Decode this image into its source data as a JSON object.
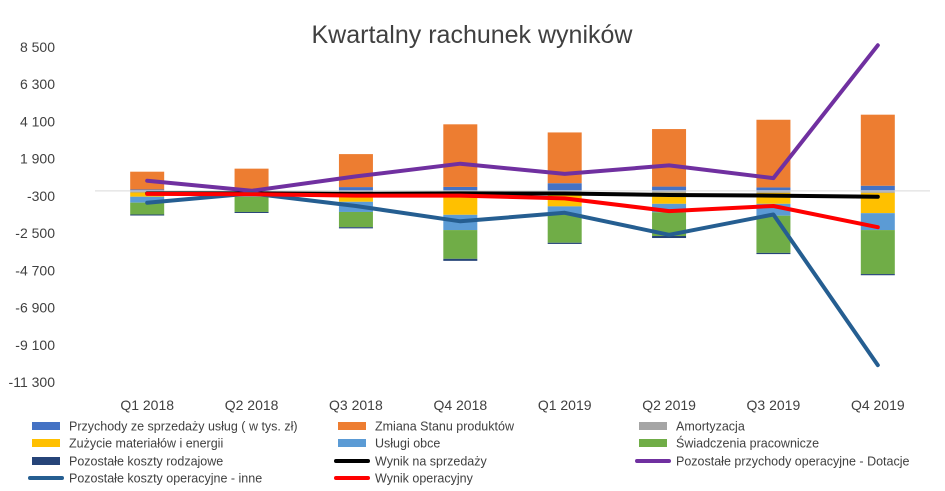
{
  "chart_data": {
    "type": "bar",
    "title": "Kwartalny rachunek wyników",
    "xlabel": "",
    "ylabel": "",
    "categories": [
      "Q1 2018",
      "Q2 2018",
      "Q3 2018",
      "Q4 2018",
      "Q1 2019",
      "Q2 2019",
      "Q3 2019",
      "Q4 2019"
    ],
    "y_ticks": [
      "8 500",
      "6 300",
      "4 100",
      "1 900",
      "-300",
      "-2 500",
      "-4 700",
      "-6 900",
      "-9 100",
      "-11 300"
    ],
    "ylim": [
      -11300,
      8500
    ],
    "grid": false,
    "legend_position": "bottom",
    "stacked_bars": true,
    "series": [
      {
        "name": "Przychody ze sprzedaży usług ( w tys. zł)",
        "kind": "bar",
        "color": "#4472C4",
        "values": [
          80,
          60,
          220,
          230,
          450,
          250,
          200,
          300
        ]
      },
      {
        "name": "Zmiana Stanu produktów",
        "kind": "bar",
        "color": "#ED7D31",
        "values": [
          1050,
          1250,
          1950,
          3700,
          3000,
          3400,
          4000,
          4200
        ]
      },
      {
        "name": "Amortyzacja",
        "kind": "bar",
        "color": "#A5A5A5",
        "values": [
          -100,
          -100,
          -100,
          -120,
          -120,
          -120,
          -120,
          -120
        ]
      },
      {
        "name": "Zużycie materiałów i energii",
        "kind": "bar",
        "color": "#FFC000",
        "values": [
          -250,
          -50,
          -550,
          -1300,
          -800,
          -650,
          -650,
          -1200
        ]
      },
      {
        "name": "Usługi obce",
        "kind": "bar",
        "color": "#5B9BD5",
        "values": [
          -350,
          -200,
          -600,
          -900,
          -450,
          -500,
          -700,
          -1000
        ]
      },
      {
        "name": "Świadczenia pracownicze",
        "kind": "bar",
        "color": "#70AD47",
        "values": [
          -700,
          -900,
          -900,
          -1700,
          -1700,
          -1400,
          -2200,
          -2600
        ]
      },
      {
        "name": "Pozostałe koszty rodzajowe",
        "kind": "bar",
        "color": "#264478",
        "values": [
          -60,
          -60,
          -70,
          -120,
          -70,
          -120,
          -70,
          -70
        ]
      },
      {
        "name": "Wynik na sprzedaży",
        "kind": "line",
        "color": "#000000",
        "values": [
          -150,
          -150,
          -180,
          -150,
          -160,
          -250,
          -280,
          -350
        ]
      },
      {
        "name": "Pozostałe przychody operacyjne - Dotacje",
        "kind": "line",
        "color": "#7030A0",
        "values": [
          600,
          0,
          850,
          1600,
          1000,
          1500,
          750,
          8600
        ]
      },
      {
        "name": "Pozostałe koszty operacyjne - inne",
        "kind": "line",
        "color": "#255E91",
        "values": [
          -700,
          -150,
          -900,
          -1800,
          -1300,
          -2600,
          -1400,
          -10300
        ]
      },
      {
        "name": "Wynik operacyjny",
        "kind": "line",
        "color": "#FF0000",
        "values": [
          -180,
          -200,
          -280,
          -280,
          -450,
          -1200,
          -900,
          -2150
        ]
      }
    ]
  }
}
